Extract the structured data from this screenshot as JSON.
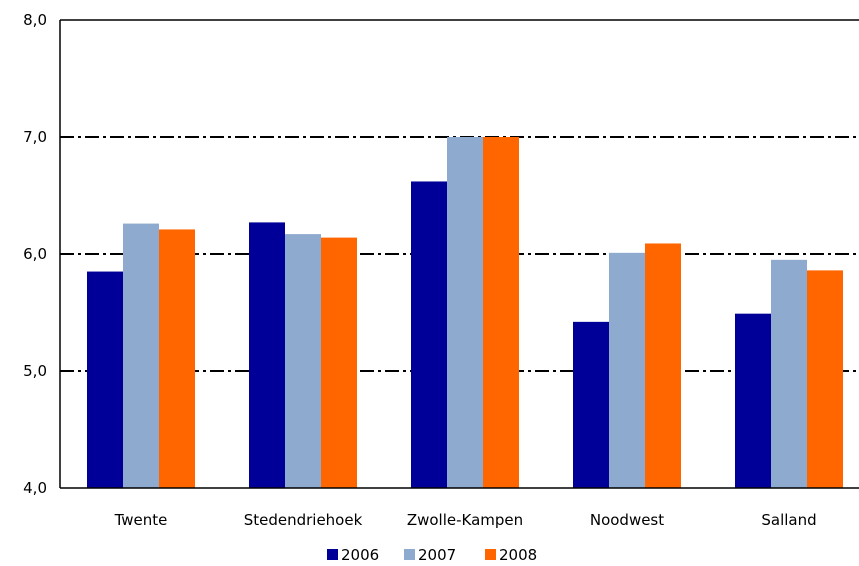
{
  "chart_data": {
    "type": "bar",
    "title": "",
    "xlabel": "",
    "ylabel": "",
    "categories": [
      "Twente",
      "Stedendriehoek",
      "Zwolle-Kampen",
      "Noodwest",
      "Salland"
    ],
    "series": [
      {
        "name": "2006",
        "color": "#000099",
        "values": [
          5.85,
          6.27,
          6.62,
          5.42,
          5.49
        ]
      },
      {
        "name": "2007",
        "color": "#8FAACF",
        "values": [
          6.26,
          6.17,
          7.0,
          6.01,
          5.95
        ]
      },
      {
        "name": "2008",
        "color": "#FF6600",
        "values": [
          6.21,
          6.14,
          7.0,
          6.09,
          5.86
        ]
      }
    ],
    "ylim": [
      4.0,
      8.0
    ],
    "yticks": [
      "4,0",
      "5,0",
      "6,0",
      "7,0",
      "8,0"
    ],
    "ytick_values": [
      4.0,
      5.0,
      6.0,
      7.0,
      8.0
    ],
    "gridlines": [
      5.0,
      6.0,
      7.0
    ],
    "legend_position": "bottom"
  }
}
